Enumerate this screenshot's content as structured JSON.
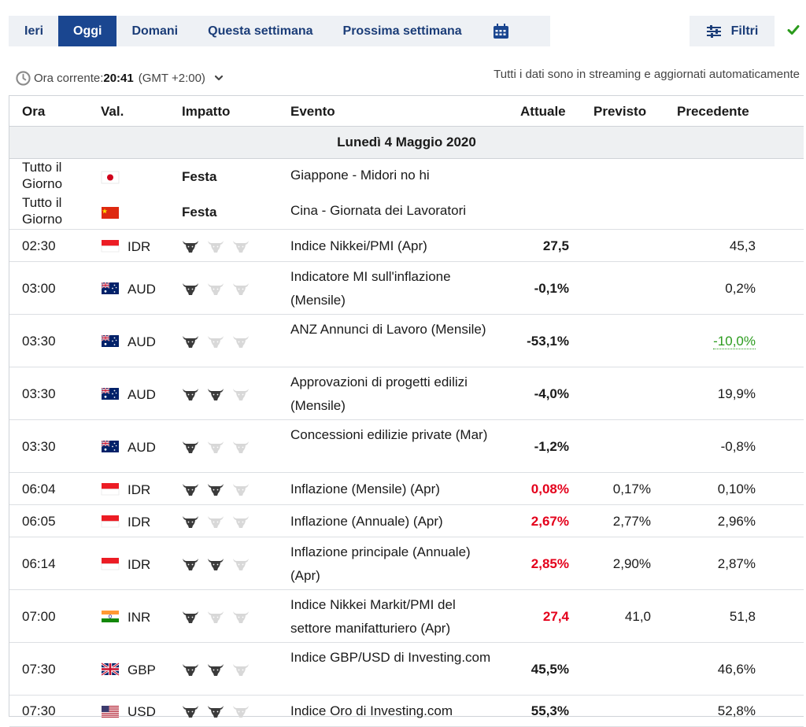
{
  "tabs": [
    {
      "label": "Ieri",
      "active": false
    },
    {
      "label": "Oggi",
      "active": true
    },
    {
      "label": "Domani",
      "active": false
    },
    {
      "label": "Questa settimana",
      "active": false
    },
    {
      "label": "Prossima settimana",
      "active": false
    }
  ],
  "filters_label": "Filtri",
  "time": {
    "label": "Ora corrente:",
    "value": "20:41",
    "timezone": "(GMT +2:00)"
  },
  "stream_note": "Tutti i dati sono in streaming e aggiornati automaticamente",
  "columns": {
    "ora": "Ora",
    "val": "Val.",
    "impatto": "Impatto",
    "evento": "Evento",
    "attuale": "Attuale",
    "previsto": "Previsto",
    "precedente": "Precedente"
  },
  "date_header": "Lunedì 4 Maggio 2020",
  "holiday_label": "Festa",
  "colors": {
    "accent": "#1a4690",
    "negative": "#e4001b",
    "positive": "#2b9b1d"
  },
  "events": [
    {
      "time": "Tutto il Giorno",
      "flag": "japan-flag",
      "currency": "",
      "impact": null,
      "event": "Giappone - Midori no hi",
      "actual": "",
      "forecast": "",
      "previous": "",
      "holiday": true
    },
    {
      "time": "Tutto il Giorno",
      "flag": "china-flag",
      "currency": "",
      "impact": null,
      "event": "Cina - Giornata dei Lavoratori",
      "actual": "",
      "forecast": "",
      "previous": "",
      "holiday": true
    },
    {
      "time": "02:30",
      "flag": "indonesia-flag",
      "currency": "IDR",
      "impact": 1,
      "event": "Indice Nikkei/PMI (Apr)",
      "actual": "27,5",
      "forecast": "",
      "previous": "45,3",
      "actual_color": "default",
      "previous_style": "default"
    },
    {
      "time": "03:00",
      "flag": "australia-flag",
      "currency": "AUD",
      "impact": 1,
      "event": "Indicatore MI sull'inflazione (Mensile)",
      "actual": "-0,1%",
      "forecast": "",
      "previous": "0,2%",
      "actual_color": "default",
      "previous_style": "default"
    },
    {
      "time": "03:30",
      "flag": "australia-flag",
      "currency": "AUD",
      "impact": 1,
      "event": "ANZ Annunci di Lavoro (Mensile)",
      "actual": "-53,1%",
      "forecast": "",
      "previous": "-10,0%",
      "actual_color": "default",
      "previous_style": "revised-green"
    },
    {
      "time": "03:30",
      "flag": "australia-flag",
      "currency": "AUD",
      "impact": 2,
      "event": "Approvazioni di progetti edilizi (Mensile)",
      "actual": "-4,0%",
      "forecast": "",
      "previous": "19,9%",
      "actual_color": "default",
      "previous_style": "default"
    },
    {
      "time": "03:30",
      "flag": "australia-flag",
      "currency": "AUD",
      "impact": 1,
      "event": "Concessioni edilizie private (Mar)",
      "actual": "-1,2%",
      "forecast": "",
      "previous": "-0,8%",
      "actual_color": "default",
      "previous_style": "default"
    },
    {
      "time": "06:04",
      "flag": "indonesia-flag",
      "currency": "IDR",
      "impact": 2,
      "event": "Inflazione (Mensile) (Apr)",
      "actual": "0,08%",
      "forecast": "0,17%",
      "previous": "0,10%",
      "actual_color": "red",
      "previous_style": "default"
    },
    {
      "time": "06:05",
      "flag": "indonesia-flag",
      "currency": "IDR",
      "impact": 1,
      "event": "Inflazione (Annuale) (Apr)",
      "actual": "2,67%",
      "forecast": "2,77%",
      "previous": "2,96%",
      "actual_color": "red",
      "previous_style": "default"
    },
    {
      "time": "06:14",
      "flag": "indonesia-flag",
      "currency": "IDR",
      "impact": 2,
      "event": "Inflazione principale (Annuale) (Apr)",
      "actual": "2,85%",
      "forecast": "2,90%",
      "previous": "2,87%",
      "actual_color": "red",
      "previous_style": "default"
    },
    {
      "time": "07:00",
      "flag": "india-flag",
      "currency": "INR",
      "impact": 1,
      "event": "Indice Nikkei Markit/PMI del settore manifatturiero (Apr)",
      "actual": "27,4",
      "forecast": "41,0",
      "previous": "51,8",
      "actual_color": "red",
      "previous_style": "default"
    },
    {
      "time": "07:30",
      "flag": "uk-flag",
      "currency": "GBP",
      "impact": 2,
      "event": "Indice GBP/USD di Investing.com",
      "actual": "45,5%",
      "forecast": "",
      "previous": "46,6%",
      "actual_color": "default",
      "previous_style": "default"
    },
    {
      "time": "07:30",
      "flag": "us-flag",
      "currency": "USD",
      "impact": 2,
      "event": "Indice Oro di Investing.com",
      "actual": "55,3%",
      "forecast": "",
      "previous": "52,8%",
      "actual_color": "default",
      "previous_style": "default"
    }
  ]
}
